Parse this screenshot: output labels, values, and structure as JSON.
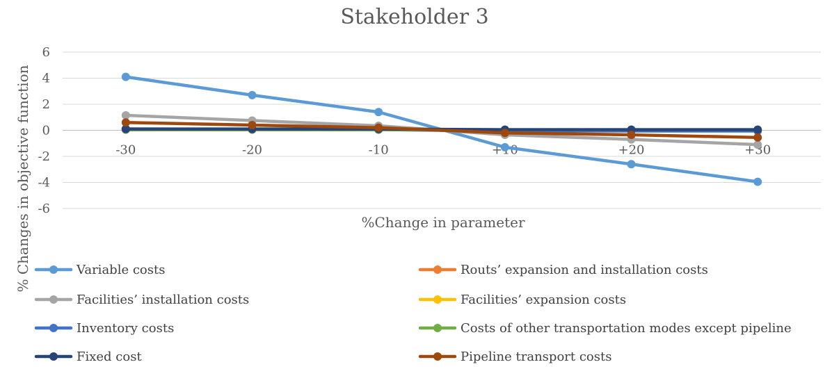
{
  "chart_data": {
    "type": "line",
    "title": "Stakeholder 3",
    "xlabel": "%Change in parameter",
    "ylabel": "% Changes in objective function",
    "categories": [
      "-30",
      "-20",
      "-10",
      "+10",
      "+20",
      "+30"
    ],
    "ylim": [
      -6,
      6
    ],
    "yticks": [
      6,
      4,
      2,
      0,
      -2,
      -4,
      -6
    ],
    "grid": true,
    "legend_position": "bottom",
    "series": [
      {
        "name": "Variable costs",
        "color": "#5B9BD5",
        "values": [
          4.1,
          2.7,
          1.4,
          -1.3,
          -2.6,
          -3.95
        ]
      },
      {
        "name": "Routs’ expansion and installation costs",
        "color": "#ED7D31",
        "values": [
          0.05,
          0.05,
          0.05,
          0.0,
          0.0,
          0.0
        ]
      },
      {
        "name": "Facilities’ installation costs",
        "color": "#A5A5A5",
        "values": [
          1.15,
          0.75,
          0.35,
          -0.35,
          -0.7,
          -1.1
        ]
      },
      {
        "name": "Facilities’ expansion costs",
        "color": "#FFC000",
        "values": [
          0.05,
          0.05,
          0.05,
          0.0,
          0.0,
          0.0
        ]
      },
      {
        "name": "Inventory costs",
        "color": "#4472C4",
        "values": [
          0.1,
          0.08,
          0.05,
          -0.05,
          -0.05,
          -0.05
        ]
      },
      {
        "name": "Costs of other transportation modes except pipeline",
        "color": "#70AD47",
        "values": [
          0.05,
          0.05,
          0.05,
          0.05,
          0.05,
          0.05
        ]
      },
      {
        "name": "Fixed cost",
        "color": "#264478",
        "values": [
          0.1,
          0.1,
          0.1,
          0.05,
          0.05,
          0.05
        ]
      },
      {
        "name": "Pipeline transport costs",
        "color": "#9E480E",
        "values": [
          0.6,
          0.4,
          0.2,
          -0.2,
          -0.35,
          -0.55
        ]
      }
    ]
  }
}
